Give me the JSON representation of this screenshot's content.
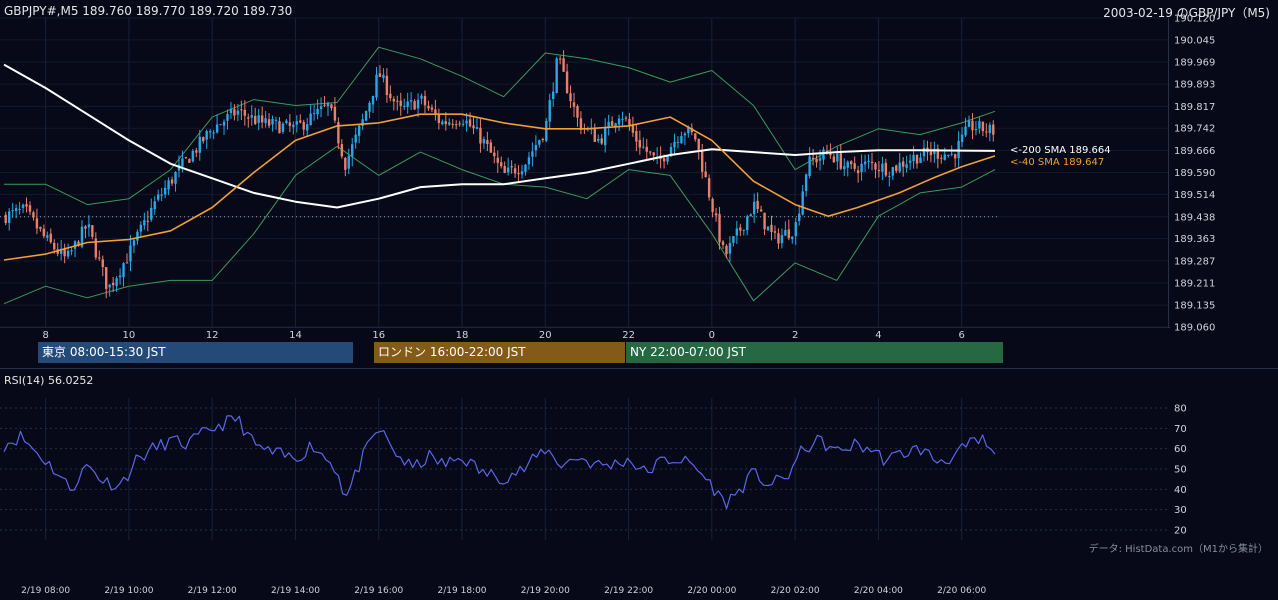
{
  "header": {
    "symbol_ohlc": "GBPJPY#,M5 189.760 189.770 189.720 189.730",
    "date_title": "2003-02-19 のGBP/JPY（M5)"
  },
  "sessions": [
    {
      "label": "東京 08:00-15:30 JST",
      "color": "#244a78"
    },
    {
      "label": "ロンドン 16:00-22:00 JST",
      "color": "#835a18"
    },
    {
      "label": "NY 22:00-07:00 JST",
      "color": "#256841"
    }
  ],
  "rsi_header": "RSI(14) 56.0252",
  "credit": "データ: HistData.com（M1から集計）",
  "sma_labels": {
    "sma200": "<-200 SMA 189.664",
    "sma40": "<-40 SMA 189.647"
  },
  "colors": {
    "up": "#2aa7e6",
    "down": "#e9806a",
    "sma200": "#ffffff",
    "sma40": "#f0a035",
    "bollinger": "#3a9a5a",
    "rsi": "#5b66e8",
    "background": "#070918"
  },
  "chart_data": [
    {
      "type": "candlestick",
      "title": "GBPJPY#,M5",
      "y_ticks": [
        190.12,
        190.045,
        189.969,
        189.893,
        189.817,
        189.742,
        189.666,
        189.59,
        189.514,
        189.438,
        189.363,
        189.287,
        189.211,
        189.135,
        189.06
      ],
      "ylim": [
        189.06,
        190.12
      ],
      "x_ticks": [
        "8",
        "10",
        "12",
        "14",
        "16",
        "18",
        "20",
        "22",
        "0",
        "2",
        "4",
        "6"
      ],
      "x_range_hours": [
        7.0,
        30.8
      ],
      "reference_line": 189.438,
      "price_path": [
        [
          7.0,
          189.44
        ],
        [
          7.5,
          189.46
        ],
        [
          8.0,
          189.36
        ],
        [
          8.5,
          189.29
        ],
        [
          9.0,
          189.41
        ],
        [
          9.5,
          189.19
        ],
        [
          10.0,
          189.31
        ],
        [
          10.6,
          189.48
        ],
        [
          11.2,
          189.6
        ],
        [
          12.0,
          189.74
        ],
        [
          12.6,
          189.8
        ],
        [
          13.2,
          189.76
        ],
        [
          14.0,
          189.74
        ],
        [
          14.8,
          189.82
        ],
        [
          15.2,
          189.62
        ],
        [
          15.6,
          189.76
        ],
        [
          16.0,
          189.93
        ],
        [
          16.5,
          189.8
        ],
        [
          17.0,
          189.84
        ],
        [
          17.5,
          189.76
        ],
        [
          18.0,
          189.78
        ],
        [
          18.5,
          189.7
        ],
        [
          19.0,
          189.58
        ],
        [
          19.5,
          189.62
        ],
        [
          20.0,
          189.74
        ],
        [
          20.3,
          189.98
        ],
        [
          20.8,
          189.76
        ],
        [
          21.3,
          189.7
        ],
        [
          21.8,
          189.8
        ],
        [
          22.2,
          189.7
        ],
        [
          22.7,
          189.62
        ],
        [
          23.3,
          189.74
        ],
        [
          23.6,
          189.71
        ],
        [
          24.0,
          189.48
        ],
        [
          24.3,
          189.3
        ],
        [
          24.7,
          189.4
        ],
        [
          25.0,
          189.48
        ],
        [
          25.5,
          189.36
        ],
        [
          26.0,
          189.4
        ],
        [
          26.3,
          189.62
        ],
        [
          26.8,
          189.66
        ],
        [
          27.3,
          189.6
        ],
        [
          27.8,
          189.62
        ],
        [
          28.3,
          189.6
        ],
        [
          28.8,
          189.64
        ],
        [
          29.3,
          189.66
        ],
        [
          29.8,
          189.65
        ],
        [
          30.2,
          189.75
        ],
        [
          30.8,
          189.73
        ]
      ],
      "sma200": [
        [
          7.0,
          189.96
        ],
        [
          8.0,
          189.88
        ],
        [
          9.0,
          189.79
        ],
        [
          10.0,
          189.7
        ],
        [
          11.0,
          189.62
        ],
        [
          12.0,
          189.57
        ],
        [
          13.0,
          189.52
        ],
        [
          14.0,
          189.49
        ],
        [
          15.0,
          189.47
        ],
        [
          16.0,
          189.5
        ],
        [
          17.0,
          189.54
        ],
        [
          18.0,
          189.55
        ],
        [
          19.0,
          189.55
        ],
        [
          20.0,
          189.57
        ],
        [
          21.0,
          189.59
        ],
        [
          22.0,
          189.62
        ],
        [
          23.0,
          189.65
        ],
        [
          24.0,
          189.67
        ],
        [
          25.0,
          189.66
        ],
        [
          26.0,
          189.65
        ],
        [
          27.0,
          189.66
        ],
        [
          28.0,
          189.666
        ],
        [
          29.0,
          189.666
        ],
        [
          30.0,
          189.665
        ],
        [
          30.8,
          189.664
        ]
      ],
      "sma40": [
        [
          7.0,
          189.29
        ],
        [
          8.0,
          189.31
        ],
        [
          9.0,
          189.35
        ],
        [
          10.0,
          189.36
        ],
        [
          11.0,
          189.39
        ],
        [
          12.0,
          189.47
        ],
        [
          13.0,
          189.59
        ],
        [
          14.0,
          189.7
        ],
        [
          15.0,
          189.75
        ],
        [
          16.0,
          189.76
        ],
        [
          17.0,
          189.79
        ],
        [
          18.0,
          189.79
        ],
        [
          19.0,
          189.76
        ],
        [
          20.0,
          189.74
        ],
        [
          21.0,
          189.74
        ],
        [
          22.0,
          189.75
        ],
        [
          23.0,
          189.78
        ],
        [
          24.0,
          189.7
        ],
        [
          25.0,
          189.56
        ],
        [
          26.0,
          189.48
        ],
        [
          26.8,
          189.44
        ],
        [
          27.5,
          189.47
        ],
        [
          28.5,
          189.52
        ],
        [
          29.3,
          189.57
        ],
        [
          30.0,
          189.61
        ],
        [
          30.8,
          189.647
        ]
      ],
      "bollinger_upper": [
        [
          7.0,
          189.55
        ],
        [
          8.0,
          189.55
        ],
        [
          9.0,
          189.48
        ],
        [
          10.0,
          189.5
        ],
        [
          11.0,
          189.6
        ],
        [
          12.0,
          189.78
        ],
        [
          13.0,
          189.84
        ],
        [
          14.0,
          189.82
        ],
        [
          15.0,
          189.83
        ],
        [
          16.0,
          190.02
        ],
        [
          17.0,
          189.98
        ],
        [
          18.0,
          189.92
        ],
        [
          19.0,
          189.85
        ],
        [
          20.0,
          190.0
        ],
        [
          21.0,
          189.98
        ],
        [
          22.0,
          189.95
        ],
        [
          23.0,
          189.9
        ],
        [
          24.0,
          189.94
        ],
        [
          25.0,
          189.82
        ],
        [
          26.0,
          189.6
        ],
        [
          27.0,
          189.68
        ],
        [
          28.0,
          189.74
        ],
        [
          29.0,
          189.72
        ],
        [
          30.0,
          189.76
        ],
        [
          30.8,
          189.8
        ]
      ],
      "bollinger_lower": [
        [
          7.0,
          189.14
        ],
        [
          8.0,
          189.2
        ],
        [
          9.0,
          189.16
        ],
        [
          10.0,
          189.2
        ],
        [
          11.0,
          189.22
        ],
        [
          12.0,
          189.22
        ],
        [
          13.0,
          189.38
        ],
        [
          14.0,
          189.58
        ],
        [
          15.0,
          189.68
        ],
        [
          16.0,
          189.58
        ],
        [
          17.0,
          189.66
        ],
        [
          18.0,
          189.6
        ],
        [
          19.0,
          189.55
        ],
        [
          20.0,
          189.54
        ],
        [
          21.0,
          189.5
        ],
        [
          22.0,
          189.6
        ],
        [
          23.0,
          189.58
        ],
        [
          24.0,
          189.38
        ],
        [
          25.0,
          189.15
        ],
        [
          26.0,
          189.28
        ],
        [
          27.0,
          189.22
        ],
        [
          28.0,
          189.44
        ],
        [
          29.0,
          189.52
        ],
        [
          30.0,
          189.54
        ],
        [
          30.8,
          189.6
        ]
      ]
    },
    {
      "type": "line",
      "title": "RSI(14) 56.0252",
      "y_ticks": [
        80,
        70,
        60,
        50,
        40,
        30,
        20
      ],
      "ylim": [
        20,
        80
      ],
      "x_ticks": [
        "2/19 08:00",
        "2/19 10:00",
        "2/19 12:00",
        "2/19 14:00",
        "2/19 16:00",
        "2/19 18:00",
        "2/19 20:00",
        "2/19 22:00",
        "2/20 00:00",
        "2/20 02:00",
        "2/20 04:00",
        "2/20 06:00"
      ],
      "rsi_path": [
        [
          7.0,
          62
        ],
        [
          7.4,
          66
        ],
        [
          7.8,
          58
        ],
        [
          8.2,
          50
        ],
        [
          8.6,
          40
        ],
        [
          9.0,
          52
        ],
        [
          9.4,
          44
        ],
        [
          9.8,
          42
        ],
        [
          10.2,
          55
        ],
        [
          10.6,
          60
        ],
        [
          11.0,
          64
        ],
        [
          11.4,
          62
        ],
        [
          12.0,
          70
        ],
        [
          12.6,
          75
        ],
        [
          13.0,
          62
        ],
        [
          13.4,
          58
        ],
        [
          14.0,
          55
        ],
        [
          14.4,
          62
        ],
        [
          15.0,
          50
        ],
        [
          15.2,
          35
        ],
        [
          15.6,
          55
        ],
        [
          16.0,
          70
        ],
        [
          16.4,
          58
        ],
        [
          16.8,
          50
        ],
        [
          17.2,
          56
        ],
        [
          17.6,
          52
        ],
        [
          18.0,
          56
        ],
        [
          18.5,
          48
        ],
        [
          19.0,
          46
        ],
        [
          19.5,
          50
        ],
        [
          20.0,
          60
        ],
        [
          20.4,
          52
        ],
        [
          20.8,
          56
        ],
        [
          21.2,
          52
        ],
        [
          21.6,
          52
        ],
        [
          22.0,
          55
        ],
        [
          22.4,
          48
        ],
        [
          22.8,
          54
        ],
        [
          23.2,
          55
        ],
        [
          23.6,
          51
        ],
        [
          24.0,
          42
        ],
        [
          24.3,
          33
        ],
        [
          24.6,
          38
        ],
        [
          25.0,
          48
        ],
        [
          25.4,
          42
        ],
        [
          25.8,
          46
        ],
        [
          26.2,
          60
        ],
        [
          26.6,
          64
        ],
        [
          27.0,
          58
        ],
        [
          27.4,
          62
        ],
        [
          27.8,
          60
        ],
        [
          28.2,
          54
        ],
        [
          28.6,
          58
        ],
        [
          29.0,
          60
        ],
        [
          29.4,
          54
        ],
        [
          29.8,
          56
        ],
        [
          30.2,
          62
        ],
        [
          30.5,
          64
        ],
        [
          30.8,
          56
        ]
      ]
    }
  ]
}
